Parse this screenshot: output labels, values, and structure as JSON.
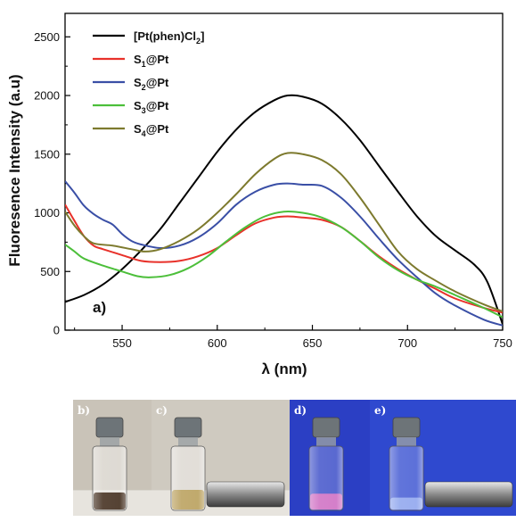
{
  "chart_data": {
    "type": "line",
    "panel_label": "a)",
    "xlabel": "λ (nm)",
    "ylabel": "Fluoresence Intensity (a.u)",
    "xlim": [
      520,
      750
    ],
    "ylim": [
      0,
      2700
    ],
    "x_ticks": [
      550,
      600,
      650,
      700,
      750
    ],
    "y_ticks": [
      0,
      500,
      1000,
      1500,
      2000,
      2500
    ],
    "grid": false,
    "legend_position": "top-left",
    "series": [
      {
        "name": "[Pt(phen)Cl2]",
        "legend": {
          "base": "[Pt(phen)Cl",
          "sub": "2",
          "tail": "]"
        },
        "color": "#000000",
        "points": [
          [
            520,
            240
          ],
          [
            530,
            300
          ],
          [
            540,
            390
          ],
          [
            550,
            520
          ],
          [
            560,
            680
          ],
          [
            570,
            860
          ],
          [
            580,
            1080
          ],
          [
            590,
            1300
          ],
          [
            600,
            1520
          ],
          [
            610,
            1710
          ],
          [
            620,
            1860
          ],
          [
            630,
            1960
          ],
          [
            637,
            2000
          ],
          [
            645,
            1990
          ],
          [
            655,
            1930
          ],
          [
            665,
            1800
          ],
          [
            675,
            1620
          ],
          [
            685,
            1400
          ],
          [
            695,
            1180
          ],
          [
            705,
            970
          ],
          [
            715,
            800
          ],
          [
            725,
            680
          ],
          [
            735,
            560
          ],
          [
            742,
            410
          ],
          [
            750,
            50
          ]
        ]
      },
      {
        "name": "S1@Pt",
        "legend": {
          "base": "S",
          "sub": "1",
          "tail": "@Pt"
        },
        "color": "#e8312a",
        "points": [
          [
            520,
            1070
          ],
          [
            525,
            930
          ],
          [
            530,
            800
          ],
          [
            535,
            720
          ],
          [
            540,
            690
          ],
          [
            550,
            640
          ],
          [
            560,
            590
          ],
          [
            570,
            580
          ],
          [
            580,
            590
          ],
          [
            590,
            630
          ],
          [
            600,
            700
          ],
          [
            610,
            810
          ],
          [
            620,
            910
          ],
          [
            630,
            960
          ],
          [
            637,
            970
          ],
          [
            645,
            960
          ],
          [
            655,
            940
          ],
          [
            665,
            880
          ],
          [
            675,
            760
          ],
          [
            685,
            630
          ],
          [
            695,
            520
          ],
          [
            705,
            430
          ],
          [
            715,
            350
          ],
          [
            725,
            270
          ],
          [
            740,
            190
          ],
          [
            750,
            150
          ]
        ]
      },
      {
        "name": "S2@Pt",
        "legend": {
          "base": "S",
          "sub": "2",
          "tail": "@Pt"
        },
        "color": "#3a4fa6",
        "points": [
          [
            520,
            1270
          ],
          [
            525,
            1170
          ],
          [
            530,
            1060
          ],
          [
            535,
            990
          ],
          [
            540,
            940
          ],
          [
            545,
            900
          ],
          [
            550,
            820
          ],
          [
            555,
            760
          ],
          [
            560,
            730
          ],
          [
            570,
            700
          ],
          [
            580,
            720
          ],
          [
            590,
            790
          ],
          [
            600,
            910
          ],
          [
            610,
            1070
          ],
          [
            620,
            1180
          ],
          [
            630,
            1240
          ],
          [
            637,
            1250
          ],
          [
            645,
            1240
          ],
          [
            655,
            1230
          ],
          [
            665,
            1130
          ],
          [
            675,
            970
          ],
          [
            685,
            780
          ],
          [
            695,
            600
          ],
          [
            705,
            450
          ],
          [
            715,
            310
          ],
          [
            725,
            210
          ],
          [
            740,
            90
          ],
          [
            750,
            40
          ]
        ]
      },
      {
        "name": "S3@Pt",
        "legend": {
          "base": "S",
          "sub": "3",
          "tail": "@Pt"
        },
        "color": "#4cbf3a",
        "points": [
          [
            520,
            730
          ],
          [
            525,
            670
          ],
          [
            530,
            610
          ],
          [
            540,
            550
          ],
          [
            550,
            500
          ],
          [
            558,
            460
          ],
          [
            565,
            450
          ],
          [
            575,
            470
          ],
          [
            585,
            530
          ],
          [
            595,
            630
          ],
          [
            605,
            760
          ],
          [
            615,
            880
          ],
          [
            625,
            970
          ],
          [
            635,
            1010
          ],
          [
            645,
            1000
          ],
          [
            655,
            960
          ],
          [
            665,
            880
          ],
          [
            675,
            760
          ],
          [
            685,
            620
          ],
          [
            695,
            510
          ],
          [
            705,
            430
          ],
          [
            715,
            370
          ],
          [
            725,
            300
          ],
          [
            740,
            190
          ],
          [
            750,
            110
          ]
        ]
      },
      {
        "name": "S4@Pt",
        "legend": {
          "base": "S",
          "sub": "4",
          "tail": "@Pt"
        },
        "color": "#7d7a2e",
        "points": [
          [
            520,
            1010
          ],
          [
            525,
            890
          ],
          [
            530,
            800
          ],
          [
            535,
            740
          ],
          [
            545,
            720
          ],
          [
            555,
            690
          ],
          [
            562,
            670
          ],
          [
            570,
            690
          ],
          [
            580,
            760
          ],
          [
            590,
            860
          ],
          [
            600,
            1000
          ],
          [
            610,
            1160
          ],
          [
            620,
            1330
          ],
          [
            630,
            1460
          ],
          [
            637,
            1510
          ],
          [
            645,
            1500
          ],
          [
            655,
            1450
          ],
          [
            665,
            1330
          ],
          [
            675,
            1130
          ],
          [
            685,
            900
          ],
          [
            695,
            670
          ],
          [
            705,
            520
          ],
          [
            715,
            420
          ],
          [
            725,
            330
          ],
          [
            740,
            220
          ],
          [
            750,
            160
          ]
        ]
      }
    ]
  },
  "photos": [
    {
      "label": "b)",
      "name": "photo-b",
      "bg": "#c9c3b8",
      "liquid": "#3a2414",
      "liquid_frac": 0.28,
      "magnet": false
    },
    {
      "label": "c)",
      "name": "photo-c",
      "bg": "#cfcac0",
      "liquid": "#b79c57",
      "liquid_frac": 0.32,
      "magnet": true
    },
    {
      "label": "d)",
      "name": "photo-d",
      "bg": "#2b3fc4",
      "liquid": "#e07bc6",
      "liquid_frac": 0.26,
      "magnet": false
    },
    {
      "label": "e)",
      "name": "photo-e",
      "bg": "#2f49cf",
      "liquid": "#9db3f2",
      "liquid_frac": 0.2,
      "magnet": true
    }
  ]
}
